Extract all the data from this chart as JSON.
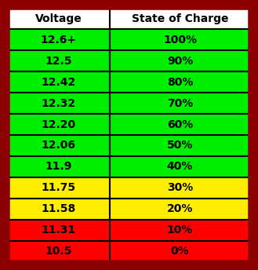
{
  "headers": [
    "Voltage",
    "State of Charge"
  ],
  "rows": [
    {
      "voltage": "12.6+",
      "charge": "100%",
      "color": "#00ee00"
    },
    {
      "voltage": "12.5",
      "charge": "90%",
      "color": "#00ee00"
    },
    {
      "voltage": "12.42",
      "charge": "80%",
      "color": "#00ee00"
    },
    {
      "voltage": "12.32",
      "charge": "70%",
      "color": "#00ee00"
    },
    {
      "voltage": "12.20",
      "charge": "60%",
      "color": "#00ee00"
    },
    {
      "voltage": "12.06",
      "charge": "50%",
      "color": "#00ee00"
    },
    {
      "voltage": "11.9",
      "charge": "40%",
      "color": "#00ee00"
    },
    {
      "voltage": "11.75",
      "charge": "30%",
      "color": "#ffee00"
    },
    {
      "voltage": "11.58",
      "charge": "20%",
      "color": "#ffee00"
    },
    {
      "voltage": "11.31",
      "charge": "10%",
      "color": "#ff0000"
    },
    {
      "voltage": "10.5",
      "charge": "0%",
      "color": "#ff0000"
    }
  ],
  "header_bg": "#ffffff",
  "header_text_color": "#000000",
  "cell_text_color": "#000000",
  "border_outer_color": "#8b0000",
  "border_inner_color": "#000000",
  "font_size": 10,
  "header_font_size": 10,
  "fig_bg": "#8b0000",
  "fig_width": 3.29,
  "fig_height": 3.44,
  "dpi": 100
}
